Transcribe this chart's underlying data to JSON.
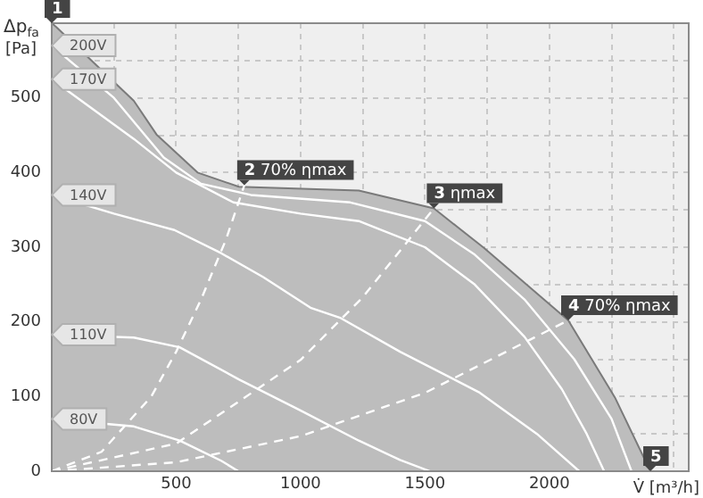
{
  "chart_data": {
    "type": "line",
    "xlabel": "V̇ [m³/h]",
    "ylabel": "Δp$_{fa}$ [Pa]",
    "xlim": [
      0,
      2560
    ],
    "ylim": [
      0,
      600
    ],
    "xticks": [
      {
        "value": 0,
        "label": null
      },
      {
        "value": 250,
        "label": null
      },
      500,
      {
        "value": 750,
        "label": null
      },
      1000,
      {
        "value": 1250,
        "label": null
      },
      1500,
      {
        "value": 1750,
        "label": null
      },
      2000,
      {
        "value": 2250,
        "label": null
      },
      {
        "value": 2500,
        "label": null
      }
    ],
    "yticks": [
      0,
      {
        "value": 50,
        "label": null
      },
      100,
      {
        "value": 150,
        "label": null
      },
      200,
      {
        "value": 250,
        "label": null
      },
      300,
      {
        "value": 350,
        "label": null
      },
      400,
      {
        "value": 450,
        "label": null
      },
      500,
      {
        "value": 550,
        "label": null
      }
    ],
    "grid": true,
    "legend": false,
    "marker": "none",
    "series": [
      {
        "type": "area",
        "color": "#bdbdbd",
        "x": [
          0,
          18,
          330,
          421,
          586,
          752,
          1234,
          1536,
          1737,
          2076,
          2263,
          2406
        ],
        "values": [
          600,
          595,
          496,
          451,
          400,
          381,
          376,
          352,
          299,
          202,
          99,
          0
        ]
      },
      {
        "name": "200V",
        "color": "#ffffff",
        "x": [
          0,
          250,
          450,
          600,
          800,
          1200,
          1500,
          1700,
          1900,
          2100,
          2250,
          2330
        ],
        "values": [
          570,
          500,
          420,
          385,
          370,
          360,
          335,
          290,
          230,
          150,
          70,
          0
        ]
      },
      {
        "name": "170V",
        "color": "#ffffff",
        "x": [
          0,
          330,
          500,
          730,
          1000,
          1234,
          1500,
          1700,
          1900,
          2050,
          2150,
          2220
        ],
        "values": [
          525,
          445,
          400,
          360,
          345,
          335,
          300,
          250,
          180,
          110,
          50,
          0
        ]
      },
      {
        "name": "140V",
        "color": "#ffffff",
        "x": [
          0,
          250,
          493,
          681,
          850,
          1040,
          1162,
          1400,
          1716,
          1950,
          2120
        ],
        "values": [
          370,
          345,
          323,
          292,
          260,
          219,
          205,
          160,
          106,
          50,
          0
        ]
      },
      {
        "name": "110V",
        "color": "#ffffff",
        "x": [
          0,
          330,
          514,
          752,
          996,
          1234,
          1400,
          1520
        ],
        "values": [
          183,
          179,
          166,
          123,
          82,
          41,
          15,
          0
        ]
      },
      {
        "name": "80V",
        "color": "#ffffff",
        "x": [
          0,
          330,
          514,
          681,
          750
        ],
        "values": [
          70,
          60,
          41,
          14,
          0
        ]
      },
      {
        "color": "#ffffff",
        "line_style": "dashed",
        "x": [
          0,
          200,
          400,
          500,
          600,
          700,
          774
        ],
        "values": [
          0,
          26,
          100,
          160,
          230,
          310,
          383
        ]
      },
      {
        "color": "#ffffff",
        "line_style": "dashed",
        "x": [
          0,
          500,
          1000,
          1250,
          1536
        ],
        "values": [
          0,
          37,
          149,
          233,
          352
        ]
      },
      {
        "color": "#ffffff",
        "line_style": "dashed",
        "x": [
          0,
          500,
          1000,
          1500,
          2076
        ],
        "values": [
          0,
          12,
          47,
          105,
          202
        ]
      }
    ],
    "annotations": [
      {
        "text": "1",
        "x": 0,
        "y": 600
      },
      {
        "text": "2 70% ηmax",
        "x": 774,
        "y": 383
      },
      {
        "text": "3 ηmax",
        "x": 1536,
        "y": 352
      },
      {
        "text": "4 70% ηmax",
        "x": 2076,
        "y": 202
      },
      {
        "text": "5",
        "x": 2406,
        "y": 0
      }
    ]
  }
}
